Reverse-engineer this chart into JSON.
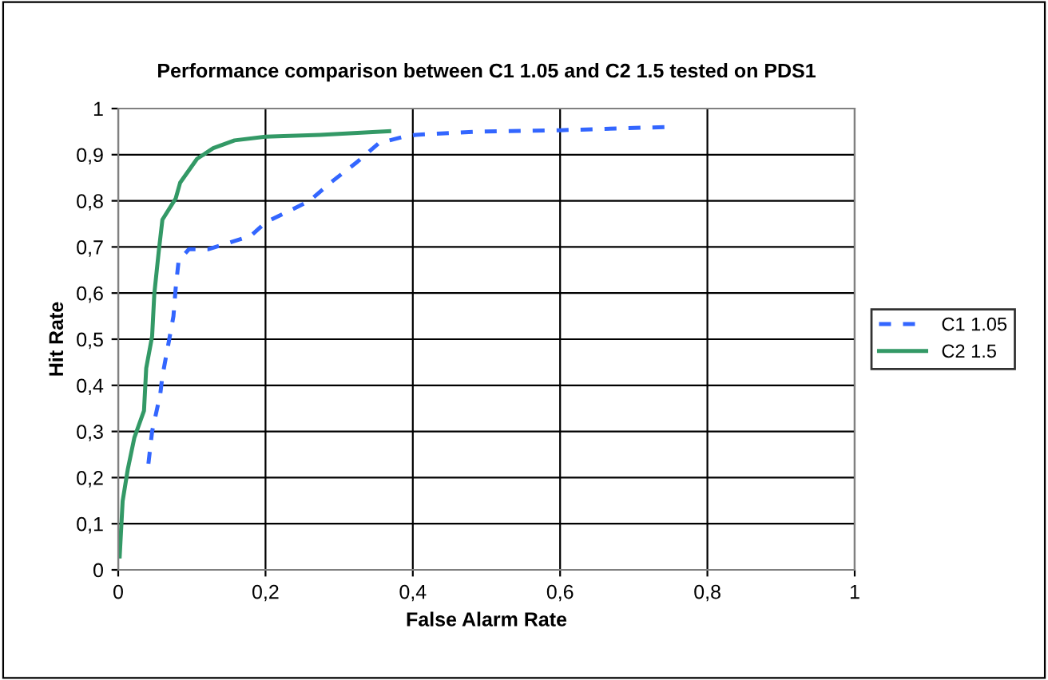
{
  "chart_data": {
    "type": "line",
    "title": "Performance comparison between C1 1.05 and C2 1.5 tested on PDS1",
    "xlabel": "False Alarm Rate",
    "ylabel": "Hit Rate",
    "xlim": [
      0,
      1
    ],
    "ylim": [
      0,
      1
    ],
    "xticks": [
      {
        "value": 0,
        "label": "0"
      },
      {
        "value": 0.2,
        "label": "0,2"
      },
      {
        "value": 0.4,
        "label": "0,4"
      },
      {
        "value": 0.6,
        "label": "0,6"
      },
      {
        "value": 0.8,
        "label": "0,8"
      },
      {
        "value": 1,
        "label": "1"
      }
    ],
    "yticks": [
      {
        "value": 0,
        "label": "0"
      },
      {
        "value": 0.1,
        "label": "0,1"
      },
      {
        "value": 0.2,
        "label": "0,2"
      },
      {
        "value": 0.3,
        "label": "0,3"
      },
      {
        "value": 0.4,
        "label": "0,4"
      },
      {
        "value": 0.5,
        "label": "0,5"
      },
      {
        "value": 0.6,
        "label": "0,6"
      },
      {
        "value": 0.7,
        "label": "0,7"
      },
      {
        "value": 0.8,
        "label": "0,8"
      },
      {
        "value": 0.9,
        "label": "0,9"
      },
      {
        "value": 1,
        "label": "1"
      }
    ],
    "grid": true,
    "legend": "right",
    "marker": "none",
    "series": [
      {
        "name": "C1 1.05",
        "color": "#3366ff",
        "line_style": "dashed",
        "x": [
          0.041,
          0.046,
          0.057,
          0.06,
          0.067,
          0.075,
          0.078,
          0.082,
          0.096,
          0.122,
          0.18,
          0.2,
          0.26,
          0.288,
          0.325,
          0.354,
          0.39,
          0.404,
          0.49,
          0.6,
          0.745
        ],
        "values": [
          0.23,
          0.3,
          0.38,
          0.42,
          0.48,
          0.55,
          0.61,
          0.67,
          0.695,
          0.695,
          0.724,
          0.753,
          0.8,
          0.839,
          0.885,
          0.925,
          0.94,
          0.943,
          0.95,
          0.953,
          0.96
        ]
      },
      {
        "name": "C2 1.5",
        "color": "#339966",
        "line_style": "solid",
        "x": [
          0.002,
          0.006,
          0.013,
          0.022,
          0.035,
          0.038,
          0.046,
          0.049,
          0.055,
          0.06,
          0.078,
          0.084,
          0.107,
          0.129,
          0.158,
          0.2,
          0.274,
          0.368
        ],
        "values": [
          0.029,
          0.149,
          0.218,
          0.287,
          0.345,
          0.437,
          0.506,
          0.598,
          0.69,
          0.759,
          0.805,
          0.839,
          0.891,
          0.914,
          0.931,
          0.939,
          0.943,
          0.951
        ]
      }
    ]
  }
}
